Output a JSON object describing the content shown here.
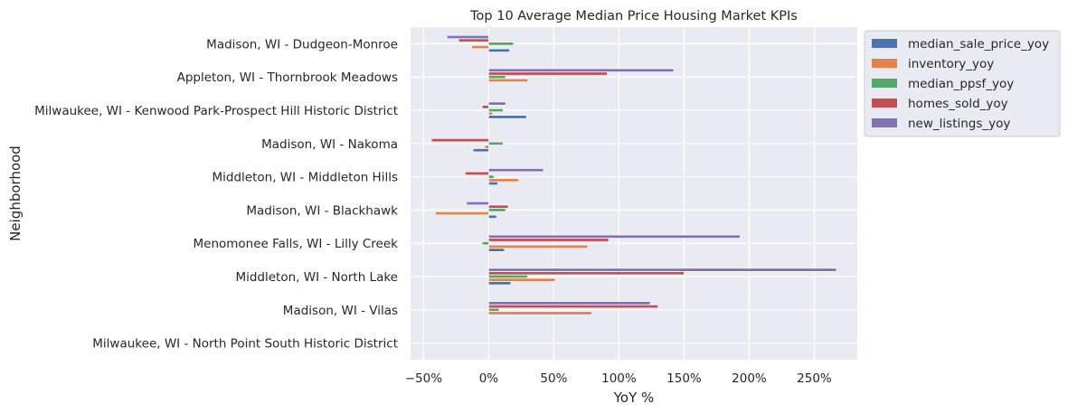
{
  "chart_data": {
    "type": "bar",
    "orientation": "horizontal",
    "title": "Top 10 Average Median Price Housing Market KPIs",
    "xlabel": "YoY %",
    "ylabel": "Neighborhood",
    "xlim": [
      -60,
      283
    ],
    "xticks": [
      -50,
      0,
      50,
      100,
      150,
      200,
      250
    ],
    "xtick_labels": [
      "−50%",
      "0%",
      "50%",
      "100%",
      "150%",
      "200%",
      "250%"
    ],
    "grid": true,
    "legend_position": "outside-top-right",
    "categories": [
      "Madison, WI - Dudgeon-Monroe",
      "Appleton, WI - Thornbrook Meadows",
      "Milwaukee, WI - Kenwood Park-Prospect Hill Historic District",
      "Madison, WI - Nakoma",
      "Middleton, WI - Middleton Hills",
      "Madison, WI - Blackhawk",
      "Menomonee Falls, WI - Lilly Creek",
      "Middleton, WI - North Lake",
      "Madison, WI - Vilas",
      "Milwaukee, WI - North Point South Historic District"
    ],
    "series": [
      {
        "name": "median_sale_price_yoy",
        "color": "#4c72b0",
        "values": [
          16,
          0,
          29,
          -12,
          7,
          6,
          12,
          17,
          0,
          null
        ]
      },
      {
        "name": "inventory_yoy",
        "color": "#dd8452",
        "values": [
          -13,
          30,
          3,
          -3,
          23,
          -41,
          76,
          51,
          79,
          null
        ]
      },
      {
        "name": "median_ppsf_yoy",
        "color": "#55a868",
        "values": [
          19,
          13,
          11,
          11,
          4,
          13,
          -5,
          30,
          8,
          null
        ]
      },
      {
        "name": "homes_sold_yoy",
        "color": "#c44e52",
        "values": [
          -23,
          91,
          -5,
          -44,
          -18,
          15,
          92,
          150,
          130,
          null
        ]
      },
      {
        "name": "new_listings_yoy",
        "color": "#8172b3",
        "values": [
          -32,
          142,
          13,
          0,
          42,
          -17,
          193,
          267,
          124,
          null
        ]
      }
    ]
  }
}
